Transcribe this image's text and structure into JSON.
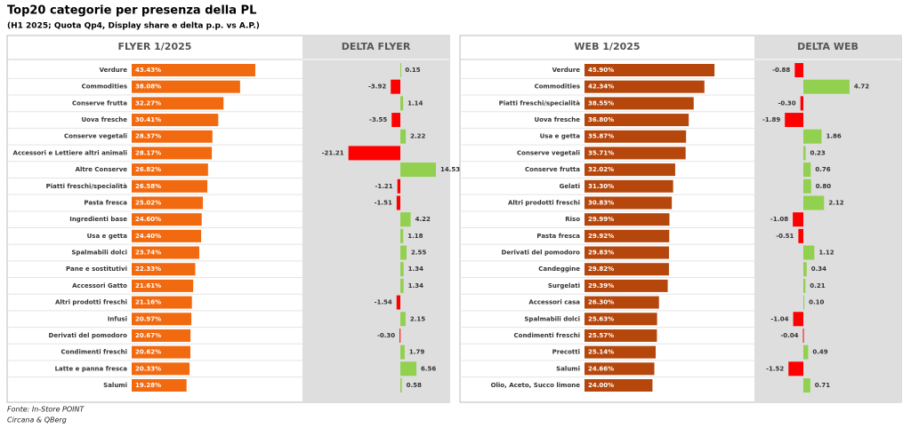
{
  "title": "Top20 categorie per presenza della PL",
  "subtitle": "(H1 2025; Quota Qp4, Display share e delta p.p. vs A.P.)",
  "source": [
    "Fonte: In-Store POINT",
    "Circana & QBerg"
  ],
  "chart_data": [
    {
      "type": "bar",
      "orientation": "horizontal",
      "title": "FLYER 1/2025",
      "color": "#f26a10",
      "xlim": [
        0,
        60
      ],
      "categories": [
        "Verdure",
        "Commodities",
        "Conserve frutta",
        "Uova fresche",
        "Conserve vegetali",
        "Accessori e Lettiere altri animali",
        "Altre Conserve",
        "Piatti freschi/specialità",
        "Pasta fresca",
        "Ingredienti base",
        "Usa e getta",
        "Spalmabili dolci",
        "Pane e sostitutivi",
        "Accessori Gatto",
        "Altri prodotti freschi",
        "Infusi",
        "Derivati del pomodoro",
        "Condimenti freschi",
        "Latte e panna fresca",
        "Salumi"
      ],
      "values": [
        43.43,
        38.08,
        32.27,
        30.41,
        28.37,
        28.17,
        26.82,
        26.58,
        25.02,
        24.6,
        24.4,
        23.74,
        22.33,
        21.61,
        21.16,
        20.97,
        20.67,
        20.62,
        20.33,
        19.28
      ],
      "value_labels": [
        "43.43%",
        "38.08%",
        "32.27%",
        "30.41%",
        "28.37%",
        "28.17%",
        "26.82%",
        "26.58%",
        "25.02%",
        "24.60%",
        "24.40%",
        "23.74%",
        "22.33%",
        "21.61%",
        "21.16%",
        "20.97%",
        "20.67%",
        "20.62%",
        "20.33%",
        "19.28%"
      ]
    },
    {
      "type": "diverging-bar",
      "orientation": "horizontal",
      "title": "DELTA FLYER",
      "positive_color": "#92d050",
      "negative_color": "#ff0000",
      "xlim": [
        -40,
        20
      ],
      "values": [
        0.15,
        -3.92,
        1.14,
        -3.55,
        2.22,
        -21.21,
        14.53,
        -1.21,
        -1.51,
        4.22,
        1.18,
        2.55,
        1.34,
        1.34,
        -1.54,
        2.15,
        -0.3,
        1.79,
        6.56,
        0.58
      ],
      "value_labels": [
        "0.15",
        "-3.92",
        "1.14",
        "-3.55",
        "2.22",
        "-21.21",
        "14.53",
        "-1.21",
        "-1.51",
        "4.22",
        "1.18",
        "2.55",
        "1.34",
        "1.34",
        "-1.54",
        "2.15",
        "-0.30",
        "1.79",
        "6.56",
        "0.58"
      ]
    },
    {
      "type": "bar",
      "orientation": "horizontal",
      "title": "WEB 1/2025",
      "color": "#b5470d",
      "xlim": [
        0,
        60
      ],
      "categories": [
        "Verdure",
        "Commodities",
        "Piatti freschi/specialità",
        "Uova fresche",
        "Usa e getta",
        "Conserve vegetali",
        "Conserve frutta",
        "Gelati",
        "Altri prodotti freschi",
        "Riso",
        "Pasta fresca",
        "Derivati del pomodoro",
        "Candeggine",
        "Surgelati",
        "Accessori casa",
        "Spalmabili dolci",
        "Condimenti freschi",
        "Precotti",
        "Salumi",
        "Olio, Aceto, Succo limone"
      ],
      "values": [
        45.9,
        42.34,
        38.55,
        36.8,
        35.87,
        35.71,
        32.02,
        31.3,
        30.83,
        29.99,
        29.92,
        29.83,
        29.82,
        29.39,
        26.3,
        25.63,
        25.57,
        25.14,
        24.66,
        24.0
      ],
      "value_labels": [
        "45.90%",
        "42.34%",
        "38.55%",
        "36.80%",
        "35.87%",
        "35.71%",
        "32.02%",
        "31.30%",
        "30.83%",
        "29.99%",
        "29.92%",
        "29.83%",
        "29.82%",
        "29.39%",
        "26.30%",
        "25.63%",
        "25.57%",
        "25.14%",
        "24.66%",
        "24.00%"
      ]
    },
    {
      "type": "diverging-bar",
      "orientation": "horizontal",
      "title": "DELTA WEB",
      "positive_color": "#92d050",
      "negative_color": "#ff0000",
      "xlim": [
        -5,
        10
      ],
      "values": [
        -0.88,
        4.72,
        -0.3,
        -1.89,
        1.86,
        0.23,
        0.76,
        0.8,
        2.12,
        -1.08,
        -0.51,
        1.12,
        0.34,
        0.21,
        0.1,
        -1.04,
        -0.04,
        0.49,
        -1.52,
        0.71
      ],
      "value_labels": [
        "-0.88",
        "4.72",
        "-0.30",
        "-1.89",
        "1.86",
        "0.23",
        "0.76",
        "0.80",
        "2.12",
        "-1.08",
        "-0.51",
        "1.12",
        "0.34",
        "0.21",
        "0.10",
        "-1.04",
        "-0.04",
        "0.49",
        "-1.52",
        "0.71"
      ]
    }
  ]
}
